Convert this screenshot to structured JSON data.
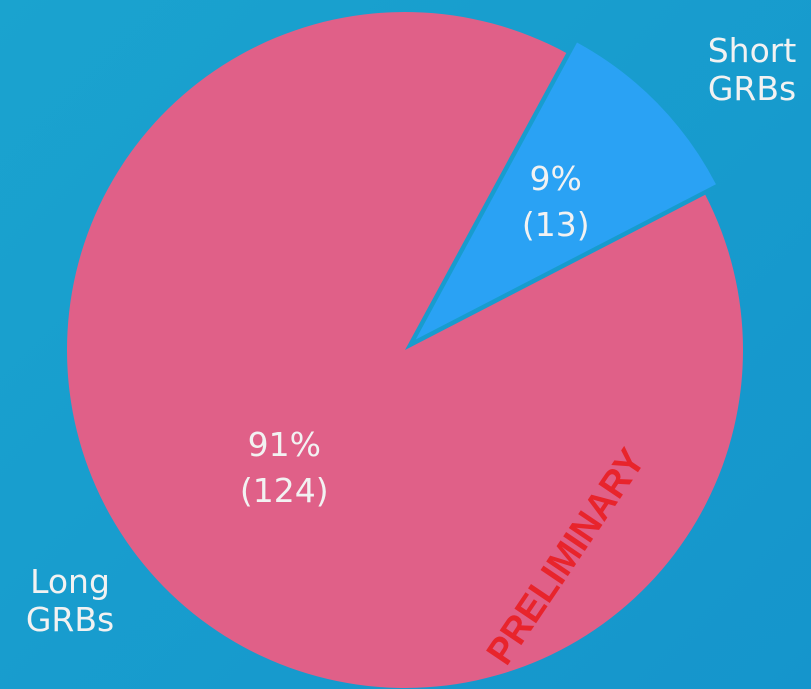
{
  "chart_data": {
    "type": "pie",
    "labels": [
      "Long GRBs",
      "Short GRBs"
    ],
    "values": [
      91,
      9
    ],
    "value_labels": [
      "91%",
      "9%"
    ],
    "counts": [
      124,
      13
    ],
    "count_labels": [
      "(124)",
      "(13)"
    ],
    "colors": [
      "#e06088",
      "#2aa2f4"
    ],
    "exploded": [
      false,
      true
    ],
    "annotation": "PRELIMINARY",
    "annotation_color": "#e8242c"
  }
}
